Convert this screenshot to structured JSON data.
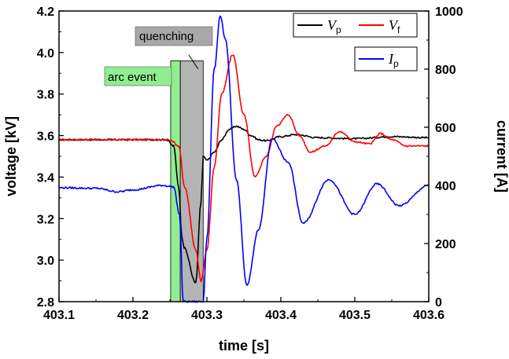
{
  "chart_data": {
    "type": "line",
    "title": "",
    "xlabel": "time [s]",
    "ylabel_left": "voltage [kV]",
    "ylabel_right": "current [A]",
    "xlim": [
      403.1,
      403.6
    ],
    "ylim_left": [
      2.8,
      4.2
    ],
    "ylim_right": [
      0,
      1000
    ],
    "x_ticks": [
      "403.1",
      "403.2",
      "403.3",
      "403.4",
      "403.5",
      "403.6"
    ],
    "y_left_ticks": [
      "2.8",
      "3.0",
      "3.2",
      "3.4",
      "3.6",
      "3.8",
      "4.0",
      "4.2"
    ],
    "y_right_ticks": [
      "0",
      "200",
      "400",
      "600",
      "800",
      "1000"
    ],
    "grid": false,
    "legend_placement": "top-right",
    "annotations": [
      {
        "name": "arc-event",
        "label": "arc event",
        "x_start": 403.251,
        "x_end": 403.264,
        "color": "#90ee90"
      },
      {
        "name": "quenching",
        "label": "quenching",
        "x_start": 403.264,
        "x_end": 403.295,
        "color": "#b4b4b4"
      }
    ],
    "series": [
      {
        "name": "V_p",
        "label_main": "V",
        "label_sub": "p",
        "axis": "left",
        "color": "#000000",
        "x": [
          403.1,
          403.2,
          403.245,
          403.255,
          403.262,
          403.266,
          403.269,
          403.285,
          403.292,
          403.295,
          403.3,
          403.31,
          403.32,
          403.33,
          403.34,
          403.35,
          403.36,
          403.37,
          403.38,
          403.4,
          403.42,
          403.45,
          403.5,
          403.55,
          403.6
        ],
        "values": [
          3.58,
          3.58,
          3.58,
          3.55,
          3.35,
          3.12,
          3.06,
          2.89,
          3.28,
          3.5,
          3.48,
          3.52,
          3.58,
          3.63,
          3.645,
          3.63,
          3.6,
          3.58,
          3.575,
          3.595,
          3.605,
          3.59,
          3.585,
          3.595,
          3.59
        ]
      },
      {
        "name": "V_f",
        "label_main": "V",
        "label_sub": "f",
        "axis": "left",
        "color": "#ff0000",
        "x": [
          403.1,
          403.15,
          403.2,
          403.25,
          403.262,
          403.27,
          403.285,
          403.292,
          403.3,
          403.31,
          403.32,
          403.335,
          403.35,
          403.365,
          403.38,
          403.395,
          403.41,
          403.425,
          403.44,
          403.46,
          403.48,
          403.5,
          403.52,
          403.535,
          403.55,
          403.57,
          403.6
        ],
        "values": [
          3.58,
          3.58,
          3.58,
          3.58,
          3.55,
          3.35,
          3.05,
          2.9,
          3.05,
          3.45,
          3.8,
          3.99,
          3.7,
          3.4,
          3.5,
          3.65,
          3.7,
          3.6,
          3.52,
          3.55,
          3.62,
          3.57,
          3.56,
          3.61,
          3.58,
          3.55,
          3.55
        ]
      },
      {
        "name": "I_p",
        "label_main": "I",
        "label_sub": "p",
        "axis": "right",
        "color": "#0000ff",
        "x": [
          403.1,
          403.15,
          403.18,
          403.2,
          403.24,
          403.255,
          403.263,
          403.268,
          403.295,
          403.3,
          403.31,
          403.318,
          403.325,
          403.34,
          403.354,
          403.37,
          403.388,
          403.41,
          403.43,
          403.465,
          403.5,
          403.53,
          403.56,
          403.6
        ],
        "values": [
          392,
          390,
          378,
          385,
          400,
          395,
          300,
          0,
          0,
          220,
          800,
          985,
          900,
          420,
          55,
          250,
          560,
          480,
          270,
          420,
          300,
          405,
          330,
          400
        ]
      }
    ]
  }
}
